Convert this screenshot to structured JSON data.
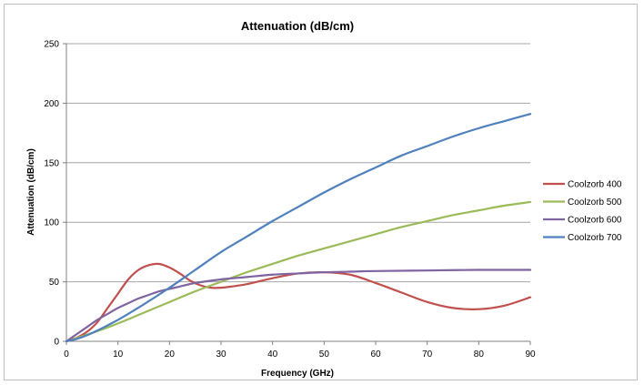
{
  "chart_data": {
    "type": "line",
    "title": "Attenuation (dB/cm)",
    "xlabel": "Frequency (GHz)",
    "ylabel": "Attenuation (dB/cm)",
    "xlim": [
      0,
      90
    ],
    "ylim": [
      0,
      250
    ],
    "xticks": [
      0,
      10,
      20,
      30,
      40,
      50,
      60,
      70,
      80,
      90
    ],
    "yticks": [
      0,
      50,
      100,
      150,
      200,
      250
    ],
    "grid": "horizontal",
    "legend_position": "right",
    "series": [
      {
        "name": "Coolzorb 400",
        "color": "#c0504d",
        "x": [
          0,
          2,
          4,
          6,
          8,
          10,
          12,
          14,
          16,
          18,
          20,
          22,
          24,
          26,
          28,
          30,
          32,
          35,
          40,
          45,
          50,
          55,
          60,
          65,
          70,
          75,
          80,
          85,
          90
        ],
        "y": [
          0,
          3,
          8,
          16,
          28,
          40,
          52,
          60,
          64,
          65,
          62,
          57,
          51,
          47,
          45,
          45,
          46,
          48,
          53,
          57,
          58,
          56,
          49,
          41,
          33,
          28,
          27,
          30,
          37
        ]
      },
      {
        "name": "Coolzorb 500",
        "color": "#9bbb59",
        "x": [
          0,
          5,
          10,
          15,
          20,
          25,
          30,
          35,
          40,
          45,
          50,
          55,
          60,
          65,
          70,
          75,
          80,
          85,
          90
        ],
        "y": [
          0,
          7,
          15,
          24,
          33,
          42,
          50,
          58,
          65,
          72,
          78,
          84,
          90,
          96,
          101,
          106,
          110,
          114,
          117
        ]
      },
      {
        "name": "Coolzorb 600",
        "color": "#8064a2",
        "x": [
          0,
          2,
          4,
          6,
          8,
          10,
          12,
          14,
          16,
          18,
          20,
          22,
          25,
          30,
          35,
          40,
          45,
          50,
          55,
          60,
          70,
          80,
          90
        ],
        "y": [
          0,
          6,
          12,
          18,
          23,
          28,
          32,
          36,
          39,
          42,
          44,
          46,
          49,
          52,
          54,
          56,
          57,
          58,
          58.5,
          59,
          59.5,
          60,
          60
        ]
      },
      {
        "name": "Coolzorb 700",
        "color": "#4f81bd",
        "x": [
          0,
          2,
          5,
          10,
          15,
          20,
          25,
          30,
          35,
          40,
          45,
          50,
          55,
          60,
          65,
          70,
          75,
          80,
          85,
          90
        ],
        "y": [
          0,
          2,
          7,
          18,
          31,
          45,
          60,
          75,
          88,
          101,
          113,
          125,
          136,
          146,
          156,
          164,
          172,
          179,
          185,
          191
        ]
      }
    ]
  }
}
